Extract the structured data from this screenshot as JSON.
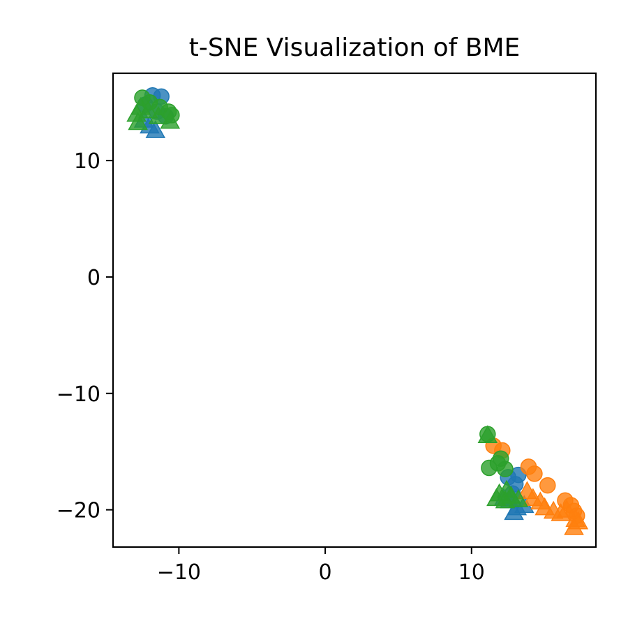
{
  "chart_data": {
    "type": "scatter",
    "title": "t-SNE Visualization of BME",
    "xlabel": "",
    "ylabel": "",
    "xlim": [
      -14.5,
      18.5
    ],
    "ylim": [
      -23.2,
      17.5
    ],
    "x_ticks": [
      -10,
      0,
      10
    ],
    "y_ticks": [
      -20,
      -10,
      0,
      10
    ],
    "x_tick_labels": [
      "−10",
      "0",
      "10"
    ],
    "y_tick_labels": [
      "−20",
      "−10",
      "0",
      "10"
    ],
    "grid": false,
    "legend": "none",
    "series": [
      {
        "color": "#1f77b4",
        "marker": "circle",
        "points": [
          [
            -11.8,
            15.6
          ],
          [
            -11.2,
            15.5
          ],
          [
            -12.3,
            14.8
          ],
          [
            -11.5,
            14.2
          ],
          [
            -10.9,
            13.8
          ],
          [
            12.5,
            -17.2
          ],
          [
            13.0,
            -17.8
          ],
          [
            12.8,
            -18.6
          ],
          [
            13.2,
            -17.0
          ]
        ]
      },
      {
        "color": "#1f77b4",
        "marker": "triangle",
        "points": [
          [
            -12.0,
            13.0
          ],
          [
            -11.6,
            12.6
          ],
          [
            -12.4,
            13.5
          ],
          [
            12.6,
            -19.2
          ],
          [
            13.1,
            -19.8
          ],
          [
            13.6,
            -19.6
          ],
          [
            12.9,
            -20.2
          ],
          [
            12.2,
            -19.0
          ]
        ]
      },
      {
        "color": "#ff7f0e",
        "marker": "circle",
        "points": [
          [
            11.5,
            -14.5
          ],
          [
            12.1,
            -14.9
          ],
          [
            13.9,
            -16.3
          ],
          [
            14.3,
            -16.9
          ],
          [
            15.2,
            -17.9
          ],
          [
            16.4,
            -19.2
          ],
          [
            17.0,
            -20.1
          ],
          [
            16.8,
            -19.6
          ],
          [
            17.2,
            -20.5
          ]
        ]
      },
      {
        "color": "#ff7f0e",
        "marker": "triangle",
        "points": [
          [
            13.8,
            -18.4
          ],
          [
            14.2,
            -19.0
          ],
          [
            14.7,
            -19.3
          ],
          [
            15.0,
            -19.8
          ],
          [
            15.6,
            -20.1
          ],
          [
            16.1,
            -20.3
          ],
          [
            16.5,
            -20.0
          ],
          [
            17.1,
            -20.8
          ],
          [
            17.0,
            -21.5
          ],
          [
            17.3,
            -21.0
          ]
        ]
      },
      {
        "color": "#2ca02c",
        "marker": "circle",
        "points": [
          [
            -12.5,
            15.4
          ],
          [
            -12.0,
            15.0
          ],
          [
            -11.3,
            14.6
          ],
          [
            -10.7,
            14.2
          ],
          [
            -10.5,
            13.9
          ],
          [
            11.1,
            -13.5
          ],
          [
            11.2,
            -16.4
          ],
          [
            11.8,
            -16.0
          ],
          [
            12.0,
            -15.6
          ],
          [
            12.3,
            -16.5
          ]
        ]
      },
      {
        "color": "#2ca02c",
        "marker": "triangle",
        "points": [
          [
            -12.9,
            14.0
          ],
          [
            -12.6,
            14.6
          ],
          [
            -12.1,
            14.3
          ],
          [
            -11.4,
            13.8
          ],
          [
            -10.6,
            13.4
          ],
          [
            -12.8,
            13.3
          ],
          [
            11.1,
            -13.6
          ],
          [
            11.9,
            -18.6
          ],
          [
            12.3,
            -19.2
          ],
          [
            12.7,
            -18.8
          ],
          [
            13.2,
            -19.1
          ],
          [
            11.7,
            -19.0
          ],
          [
            12.4,
            -18.3
          ]
        ]
      }
    ]
  }
}
